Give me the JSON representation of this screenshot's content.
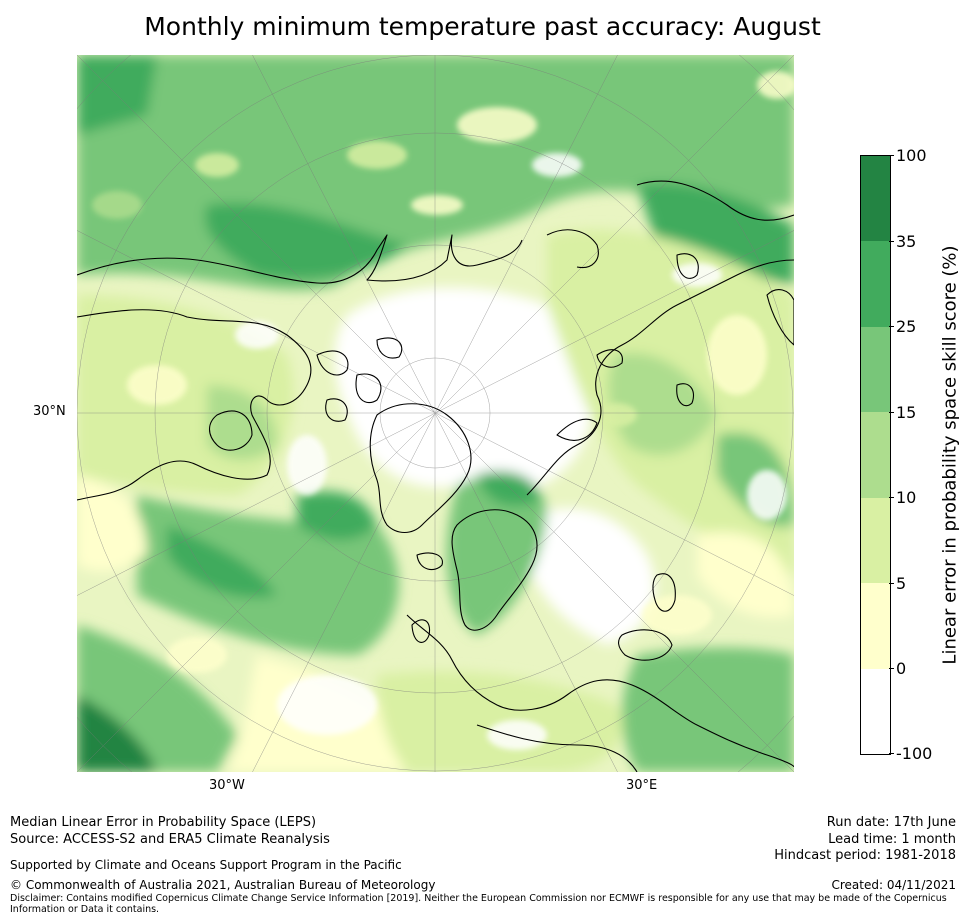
{
  "title": "Monthly minimum temperature past accuracy: August",
  "map": {
    "projection": "north-polar-stereographic",
    "lat_labels": [
      "30°N"
    ],
    "lon_labels": [
      "30°W",
      "30°E"
    ],
    "ocean_color": "#e9f5c2"
  },
  "colorbar": {
    "label": "Linear error in probability space skill score (%)",
    "ticks": [
      "100",
      "35",
      "25",
      "15",
      "10",
      "5",
      "0",
      "-100"
    ],
    "bins": [
      {
        "from": "-100",
        "to": "0",
        "color": "#ffffff"
      },
      {
        "from": "0",
        "to": "5",
        "color": "#ffffcc"
      },
      {
        "from": "5",
        "to": "10",
        "color": "#d9f0a3"
      },
      {
        "from": "10",
        "to": "15",
        "color": "#addd8e"
      },
      {
        "from": "15",
        "to": "25",
        "color": "#78c679"
      },
      {
        "from": "25",
        "to": "35",
        "color": "#41ab5d"
      },
      {
        "from": "35",
        "to": "100",
        "color": "#238443"
      }
    ]
  },
  "footer": {
    "method": "Median Linear Error in Probability Space (LEPS)",
    "source": "Source: ACCESS-S2 and ERA5 Climate Reanalysis",
    "support": "Supported by Climate and Oceans Support Program in the Pacific",
    "copyright": "© Commonwealth of Australia 2021, Australian Bureau of Meteorology",
    "disclaimer_line1": "Disclaimer: Contains modified Copernicus Climate Change Service Information [2019]. Neither the European Commission nor ECMWF is responsible for any use that may be made of the Copernicus",
    "disclaimer_line2": "Information or Data it contains.",
    "run_date": "Run date: 17th June",
    "lead_time": "Lead time: 1 month",
    "hindcast": "Hindcast period: 1981-2018",
    "created": "Created: 04/11/2021"
  }
}
